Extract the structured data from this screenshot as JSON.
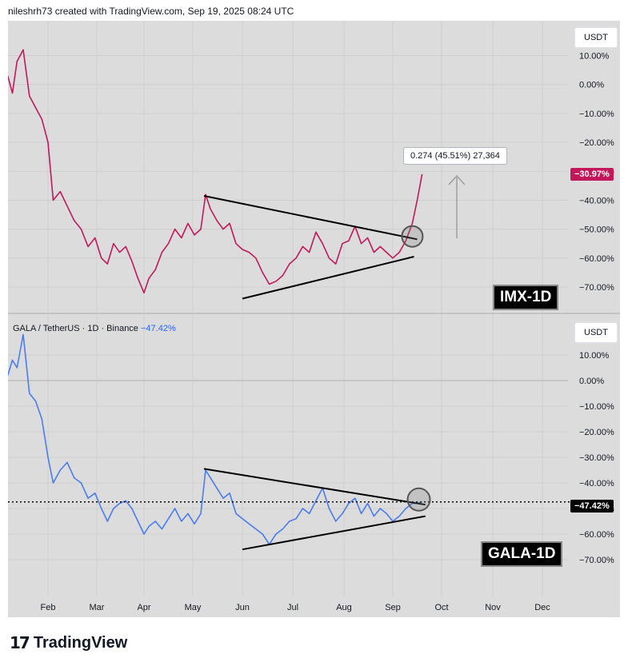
{
  "header": {
    "attribution": "nileshrh73 created with TradingView.com, Sep 19, 2025 08:24 UTC"
  },
  "top_pane": {
    "unit": "USDT",
    "tag": "IMX-1D",
    "last_value_label": "−30.97%",
    "measure_label": "0.274 (45.51%) 27,364",
    "line_color": "#c2185b"
  },
  "bottom_pane": {
    "unit": "USDT",
    "symbol_label": "GALA / TetherUS · 1D · Binance",
    "change_label": "−47.42%",
    "tag": "GALA-1D",
    "last_value_label": "−47.42%",
    "line_color": "#4a7cf0"
  },
  "footer": {
    "brand": "TradingView"
  },
  "chart_data": [
    {
      "type": "line",
      "name": "IMX-1D",
      "y_unit": "%",
      "y_ticks": [
        "10.00%",
        "0.00%",
        "−10.00%",
        "−20.00%",
        "−30.00%",
        "−40.00%",
        "−50.00%",
        "−60.00%",
        "−70.00%"
      ],
      "y_tick_values": [
        10,
        0,
        -10,
        -20,
        -30,
        -40,
        -50,
        -60,
        -70
      ],
      "ylim": [
        -78,
        22
      ],
      "x_ticks": [
        "Feb",
        "Mar",
        "Apr",
        "May",
        "Jun",
        "Jul",
        "Aug",
        "Sep",
        "Oct",
        "Nov",
        "Dec"
      ],
      "x": [
        "Jan 6",
        "Jan 9",
        "Jan 12",
        "Jan 16",
        "Jan 20",
        "Jan 24",
        "Jan 28",
        "Feb 1",
        "Feb 4",
        "Feb 8",
        "Feb 12",
        "Feb 16",
        "Feb 20",
        "Feb 24",
        "Feb 28",
        "Mar 4",
        "Mar 8",
        "Mar 12",
        "Mar 16",
        "Mar 20",
        "Mar 24",
        "Mar 28",
        "Apr 1",
        "Apr 4",
        "Apr 8",
        "Apr 12",
        "Apr 16",
        "Apr 20",
        "Apr 24",
        "Apr 28",
        "May 2",
        "May 6",
        "May 9",
        "May 12",
        "May 16",
        "May 20",
        "May 24",
        "May 28",
        "Jun 1",
        "Jun 5",
        "Jun 9",
        "Jun 13",
        "Jun 17",
        "Jun 21",
        "Jun 25",
        "Jun 29",
        "Jul 3",
        "Jul 7",
        "Jul 11",
        "Jul 15",
        "Jul 19",
        "Jul 23",
        "Jul 27",
        "Jul 31",
        "Aug 4",
        "Aug 8",
        "Aug 12",
        "Aug 16",
        "Aug 20",
        "Aug 24",
        "Aug 28",
        "Sep 1",
        "Sep 5",
        "Sep 9",
        "Sep 13",
        "Sep 16",
        "Sep 19"
      ],
      "values": [
        3,
        -3,
        8,
        12,
        -4,
        -8,
        -12,
        -20,
        -40,
        -37,
        -42,
        -47,
        -50,
        -56,
        -53,
        -60,
        -62,
        -55,
        -58,
        -56,
        -61,
        -67,
        -72,
        -67,
        -64,
        -58,
        -55,
        -50,
        -53,
        -48,
        -52,
        -50,
        -38,
        -43,
        -47,
        -50,
        -48,
        -55,
        -57,
        -58,
        -60,
        -65,
        -69,
        -68,
        -66,
        -62,
        -60,
        -56,
        -58,
        -51,
        -55,
        -60,
        -62,
        -55,
        -54,
        -49,
        -55,
        -53,
        -58,
        -56,
        -58,
        -60,
        -58,
        -54,
        -48,
        -40,
        -31
      ],
      "trendlines": [
        {
          "from": [
            "May 8",
            -38.5
          ],
          "to": [
            "Sep 16",
            -53.5
          ]
        },
        {
          "from": [
            "Jun 1",
            -74
          ],
          "to": [
            "Sep 14",
            -59.5
          ]
        }
      ]
    },
    {
      "type": "line",
      "name": "GALA / TetherUS · 1D · Binance",
      "y_unit": "%",
      "y_ticks": [
        "10.00%",
        "0.00%",
        "−10.00%",
        "−20.00%",
        "−30.00%",
        "−40.00%",
        "−50.00%",
        "−60.00%",
        "−70.00%"
      ],
      "y_tick_values": [
        10,
        0,
        -10,
        -20,
        -30,
        -40,
        -50,
        -60,
        -70
      ],
      "ylim": [
        -80,
        25
      ],
      "x_ticks": [
        "Feb",
        "Mar",
        "Apr",
        "May",
        "Jun",
        "Jul",
        "Aug",
        "Sep",
        "Oct",
        "Nov",
        "Dec"
      ],
      "x": [
        "Jan 6",
        "Jan 9",
        "Jan 12",
        "Jan 16",
        "Jan 20",
        "Jan 24",
        "Jan 28",
        "Feb 1",
        "Feb 4",
        "Feb 8",
        "Feb 12",
        "Feb 16",
        "Feb 20",
        "Feb 24",
        "Feb 28",
        "Mar 4",
        "Mar 8",
        "Mar 12",
        "Mar 16",
        "Mar 20",
        "Mar 24",
        "Mar 28",
        "Apr 1",
        "Apr 4",
        "Apr 8",
        "Apr 12",
        "Apr 16",
        "Apr 20",
        "Apr 24",
        "Apr 28",
        "May 2",
        "May 6",
        "May 9",
        "May 12",
        "May 16",
        "May 20",
        "May 24",
        "May 28",
        "Jun 1",
        "Jun 5",
        "Jun 9",
        "Jun 13",
        "Jun 17",
        "Jun 21",
        "Jun 25",
        "Jun 29",
        "Jul 3",
        "Jul 7",
        "Jul 11",
        "Jul 15",
        "Jul 19",
        "Jul 23",
        "Jul 27",
        "Jul 31",
        "Aug 4",
        "Aug 8",
        "Aug 12",
        "Aug 16",
        "Aug 20",
        "Aug 24",
        "Aug 28",
        "Sep 1",
        "Sep 5",
        "Sep 9",
        "Sep 13",
        "Sep 16",
        "Sep 19"
      ],
      "values": [
        2,
        8,
        5,
        18,
        -5,
        -8,
        -15,
        -30,
        -40,
        -35,
        -32,
        -38,
        -40,
        -46,
        -44,
        -50,
        -55,
        -50,
        -48,
        -47,
        -50,
        -55,
        -60,
        -57,
        -55,
        -58,
        -54,
        -50,
        -55,
        -52,
        -56,
        -52,
        -35,
        -38,
        -42,
        -46,
        -44,
        -52,
        -54,
        -56,
        -58,
        -60,
        -64,
        -60,
        -58,
        -55,
        -54,
        -50,
        -52,
        -47,
        -42,
        -50,
        -55,
        -52,
        -48,
        -46,
        -52,
        -48,
        -53,
        -50,
        -52,
        -55,
        -53,
        -50,
        -48,
        -48,
        -47.4
      ],
      "trendlines": [
        {
          "from": [
            "May 8",
            -34.5
          ],
          "to": [
            "Sep 21",
            -48.5
          ]
        },
        {
          "from": [
            "Jun 1",
            -66
          ],
          "to": [
            "Sep 21",
            -53
          ]
        }
      ],
      "reference_line": -47.42
    }
  ]
}
